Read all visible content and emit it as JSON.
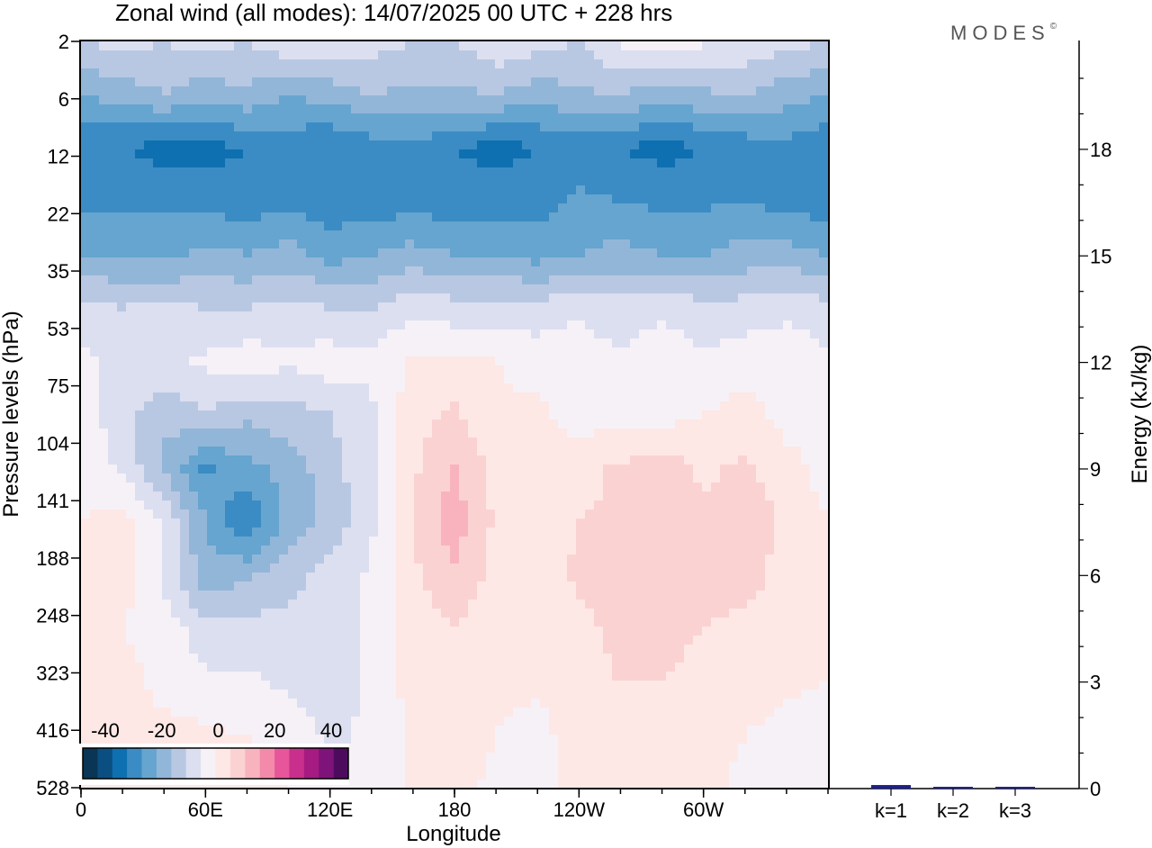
{
  "title": "Zonal wind (all modes):  14/07/2025  00 UTC  + 228 hrs",
  "logo": "MODES",
  "logo_mark": "©",
  "chart_data": [
    {
      "type": "heatmap",
      "xlabel": "Longitude",
      "ylabel": "Pressure levels (hPa)",
      "x_ticks": [
        {
          "lon": 0,
          "label": "0"
        },
        {
          "lon": 60,
          "label": "60E"
        },
        {
          "lon": 120,
          "label": "120E"
        },
        {
          "lon": 180,
          "label": "180"
        },
        {
          "lon": 240,
          "label": "120W"
        },
        {
          "lon": 300,
          "label": "60W"
        }
      ],
      "x_range": [
        0,
        360
      ],
      "y_ticks": [
        "2",
        "6",
        "12",
        "22",
        "35",
        "53",
        "75",
        "104",
        "141",
        "188",
        "248",
        "323",
        "416",
        "528"
      ],
      "colorbar": {
        "labels": [
          "-40",
          "-20",
          "0",
          "20",
          "40"
        ],
        "colors": [
          "#0a3554",
          "#0b4f82",
          "#0e70b0",
          "#3b8cc4",
          "#66a5cf",
          "#92b6d8",
          "#b9c8e2",
          "#dcdff0",
          "#f5f1f7",
          "#fde8e6",
          "#fbd2d2",
          "#f8b3bf",
          "#f38aaa",
          "#e7559a",
          "#c92f8c",
          "#a51b82",
          "#7e1479",
          "#4d0b5e"
        ]
      },
      "field": {
        "lons": [
          0,
          20,
          40,
          60,
          80,
          100,
          120,
          140,
          160,
          180,
          200,
          220,
          240,
          260,
          280,
          300,
          320,
          340,
          360
        ],
        "rows": [
          [
            -10,
            -8,
            -10,
            -8,
            -10,
            -6,
            -6,
            -8,
            -10,
            -10,
            -6,
            -8,
            -10,
            -4,
            -2,
            -4,
            -6,
            -8,
            -10
          ],
          [
            -20,
            -18,
            -15,
            -18,
            -16,
            -20,
            -18,
            -15,
            -16,
            -16,
            -15,
            -18,
            -16,
            -15,
            -18,
            -16,
            -15,
            -18,
            -20
          ],
          [
            -30,
            -30,
            -32,
            -32,
            -30,
            -28,
            -30,
            -28,
            -26,
            -30,
            -32,
            -30,
            -28,
            -30,
            -32,
            -30,
            -28,
            -26,
            -30
          ],
          [
            -27,
            -26,
            -26,
            -27,
            -28,
            -26,
            -28,
            -28,
            -27,
            -28,
            -27,
            -27,
            -24,
            -25,
            -26,
            -26,
            -25,
            -27,
            -28
          ],
          [
            -20,
            -20,
            -22,
            -18,
            -20,
            -18,
            -22,
            -20,
            -18,
            -20,
            -20,
            -22,
            -20,
            -18,
            -20,
            -20,
            -18,
            -18,
            -20
          ],
          [
            -8,
            -10,
            -8,
            -10,
            -10,
            -8,
            -10,
            -10,
            -6,
            -8,
            -8,
            -8,
            -6,
            -8,
            -6,
            -8,
            -8,
            -6,
            -8
          ],
          [
            -4,
            -6,
            -6,
            -4,
            -2,
            -4,
            -2,
            -4,
            1,
            1,
            0,
            -2,
            -2,
            -4,
            -2,
            -4,
            -2,
            -2,
            -4
          ],
          [
            -2,
            -8,
            -14,
            -10,
            -14,
            -12,
            -10,
            -6,
            3,
            6,
            1,
            1,
            -2,
            -2,
            -2,
            0,
            2,
            -2,
            -2
          ],
          [
            -2,
            -6,
            -16,
            -26,
            -22,
            -18,
            -12,
            -6,
            4,
            10,
            3,
            1,
            3,
            6,
            8,
            4,
            6,
            2,
            -2
          ],
          [
            0,
            2,
            -6,
            -20,
            -30,
            -18,
            -14,
            -6,
            5,
            13,
            4,
            3,
            5,
            6,
            5,
            6,
            8,
            4,
            0
          ],
          [
            1,
            2,
            -6,
            -18,
            -16,
            -12,
            -8,
            -4,
            4,
            9,
            3,
            2,
            6,
            6,
            5,
            6,
            7,
            3,
            0
          ],
          [
            1,
            0,
            -2,
            -8,
            -8,
            -8,
            -10,
            -4,
            3,
            5,
            2,
            1,
            4,
            6,
            6,
            5,
            4,
            2,
            0
          ],
          [
            2,
            2,
            -2,
            -4,
            -4,
            -6,
            -8,
            -4,
            2,
            3,
            1,
            1,
            4,
            5,
            5,
            4,
            3,
            1,
            0
          ],
          [
            1,
            2,
            2,
            1,
            0,
            -2,
            -6,
            -4,
            1,
            3,
            0,
            -2,
            3,
            4,
            3,
            3,
            0,
            -2,
            -4
          ],
          [
            1,
            2,
            3,
            3,
            2,
            0,
            -4,
            -4,
            1,
            1,
            -1,
            -2,
            2,
            3,
            1,
            2,
            -2,
            -2,
            -4
          ]
        ]
      }
    },
    {
      "type": "bar",
      "ylabel": "Energy (kJ/kg)",
      "categories": [
        "k=1",
        "k=2",
        "k=3"
      ],
      "values": [
        0.1,
        0.05,
        0.05
      ],
      "ylim": [
        0,
        20
      ],
      "y_ticks": [
        "0",
        "3",
        "6",
        "9",
        "12",
        "15",
        "18"
      ],
      "bar_color": "#1f1f8a"
    }
  ]
}
